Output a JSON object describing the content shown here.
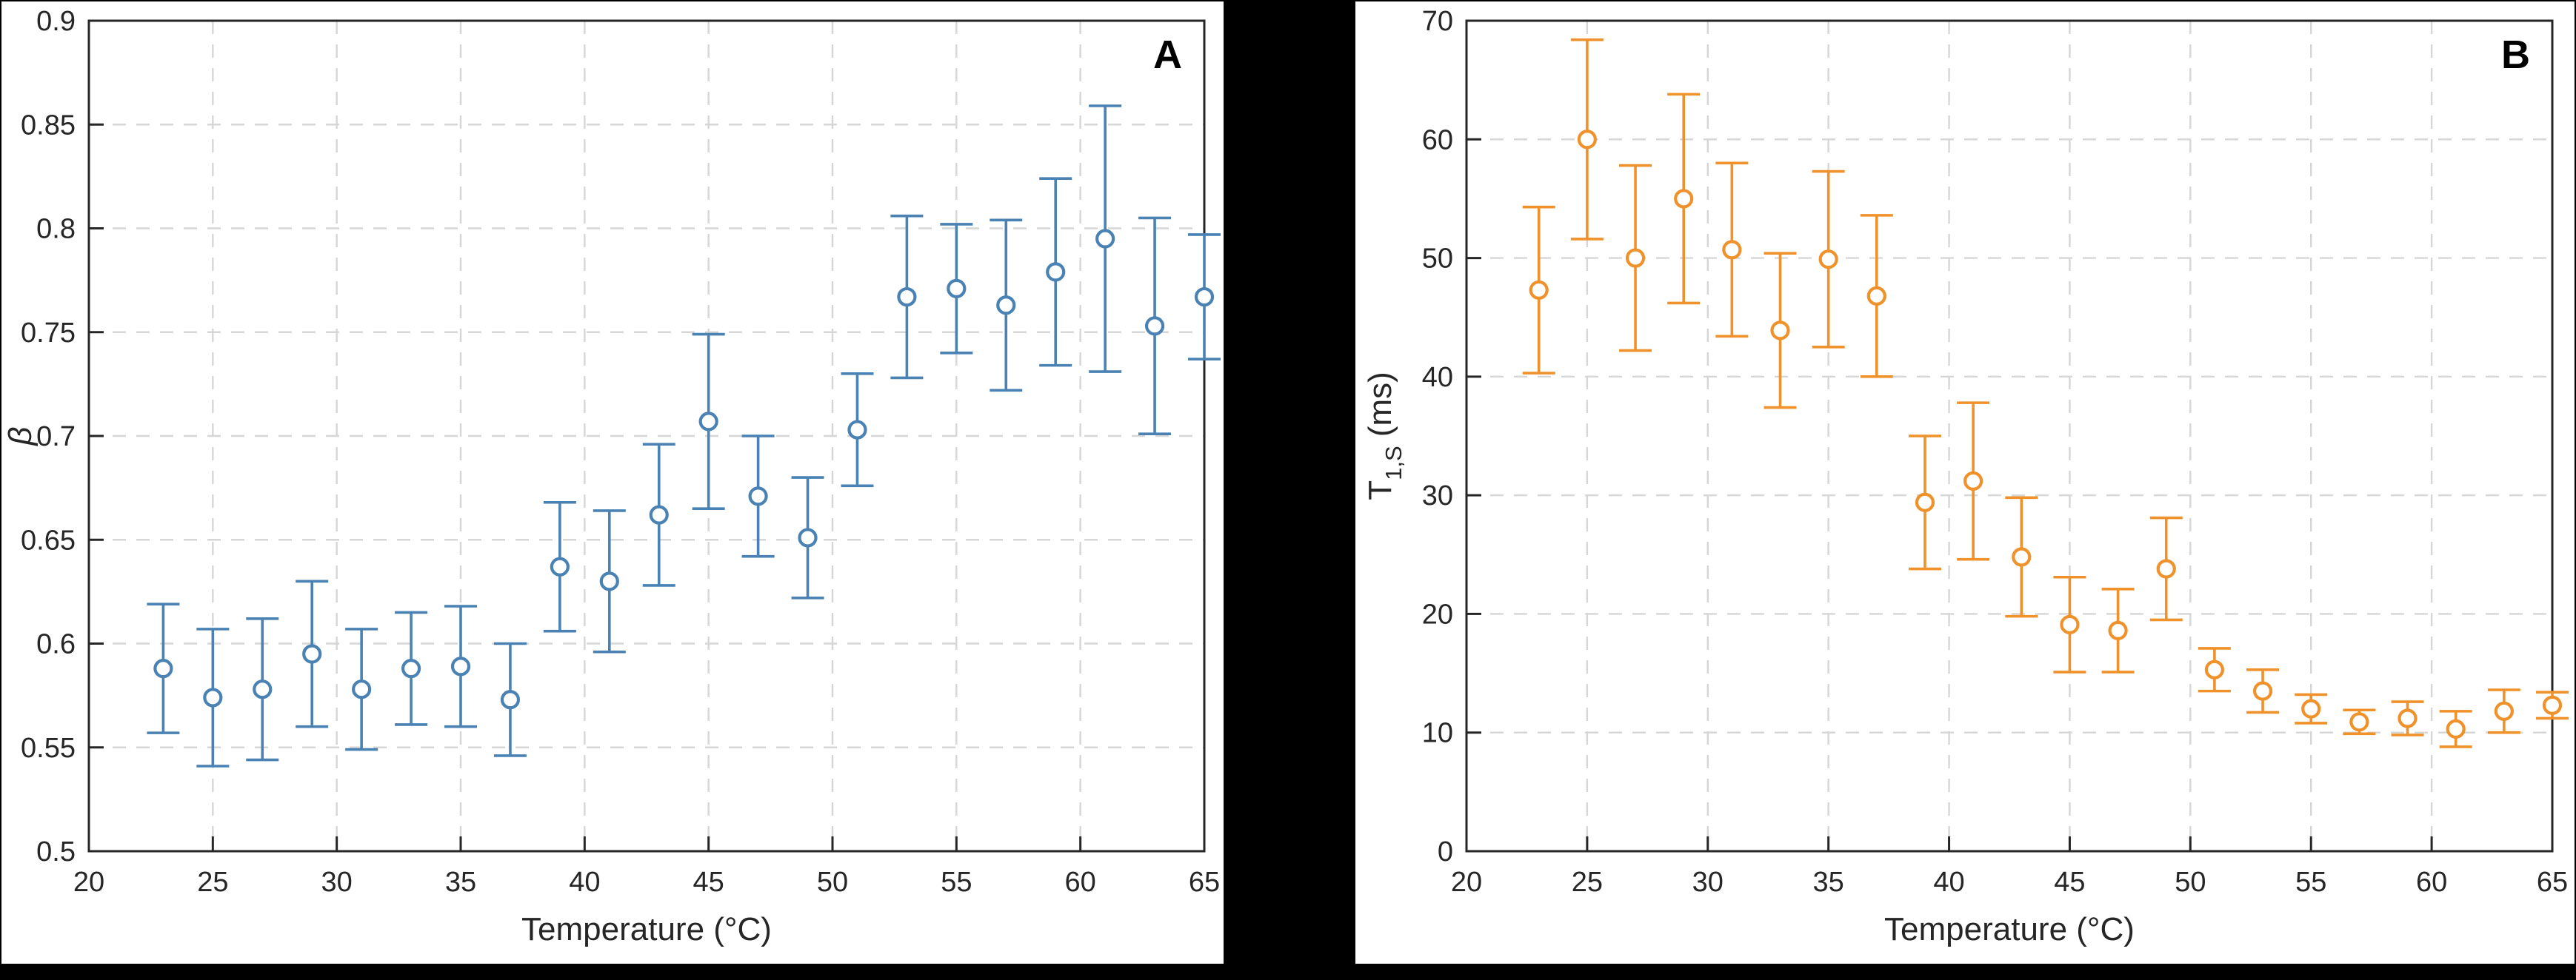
{
  "page": {
    "background_color": "#000000",
    "panel_background_color": "#ffffff"
  },
  "chart_data": [
    {
      "type": "scatter",
      "panel_label": "A",
      "color": "#4A82B4",
      "xlabel": "Temperature (°C)",
      "ylabel_parts": [
        {
          "text": "β",
          "italic": true
        }
      ],
      "xlim": [
        20,
        65
      ],
      "ylim": [
        0.5,
        0.9
      ],
      "xticks": [
        20,
        25,
        30,
        35,
        40,
        45,
        50,
        55,
        60,
        65
      ],
      "xtick_labels": [
        "20",
        "25",
        "30",
        "35",
        "40",
        "45",
        "50",
        "55",
        "60",
        "65"
      ],
      "yticks": [
        0.5,
        0.55,
        0.6,
        0.65,
        0.7,
        0.75,
        0.8,
        0.85,
        0.9
      ],
      "ytick_labels": [
        "0.5",
        "0.55",
        "0.6",
        "0.65",
        "0.7",
        "0.75",
        "0.8",
        "0.85",
        "0.9"
      ],
      "grid": true,
      "legend": "none",
      "x": [
        23,
        25,
        27,
        29,
        31,
        33,
        35,
        37,
        39,
        41,
        43,
        45,
        47,
        49,
        51,
        53,
        55,
        57,
        59,
        61,
        63,
        65
      ],
      "y": [
        0.588,
        0.574,
        0.578,
        0.595,
        0.578,
        0.588,
        0.589,
        0.573,
        0.637,
        0.63,
        0.662,
        0.707,
        0.671,
        0.651,
        0.703,
        0.767,
        0.771,
        0.763,
        0.779,
        0.795,
        0.753,
        0.767
      ],
      "yerr": [
        0.031,
        0.033,
        0.034,
        0.035,
        0.029,
        0.027,
        0.029,
        0.027,
        0.031,
        0.034,
        0.034,
        0.042,
        0.029,
        0.029,
        0.027,
        0.039,
        0.031,
        0.041,
        0.045,
        0.064,
        0.052,
        0.03
      ]
    },
    {
      "type": "scatter",
      "panel_label": "B",
      "color": "#F0922B",
      "xlabel": "Temperature (°C)",
      "ylabel_parts": [
        {
          "text": "T"
        },
        {
          "text": "1,S",
          "sub": true
        },
        {
          "text": " (ms)"
        }
      ],
      "xlim": [
        20,
        65
      ],
      "ylim": [
        0,
        70
      ],
      "xticks": [
        20,
        25,
        30,
        35,
        40,
        45,
        50,
        55,
        60,
        65
      ],
      "xtick_labels": [
        "20",
        "25",
        "30",
        "35",
        "40",
        "45",
        "50",
        "55",
        "60",
        "65"
      ],
      "yticks": [
        0,
        10,
        20,
        30,
        40,
        50,
        60,
        70
      ],
      "ytick_labels": [
        "0",
        "10",
        "20",
        "30",
        "40",
        "50",
        "60",
        "70"
      ],
      "grid": true,
      "legend": "none",
      "x": [
        23,
        25,
        27,
        29,
        31,
        33,
        35,
        37,
        39,
        41,
        43,
        45,
        47,
        49,
        51,
        53,
        55,
        57,
        59,
        61,
        63,
        65
      ],
      "y": [
        47.3,
        60.0,
        50.0,
        55.0,
        50.7,
        43.9,
        49.9,
        46.8,
        29.4,
        31.2,
        24.8,
        19.1,
        18.6,
        23.8,
        15.3,
        13.5,
        12.0,
        10.9,
        11.2,
        10.3,
        11.8,
        12.3
      ],
      "yerr": [
        7.0,
        8.4,
        7.8,
        8.8,
        7.3,
        6.5,
        7.4,
        6.8,
        5.6,
        6.6,
        5.0,
        4.0,
        3.5,
        4.3,
        1.8,
        1.8,
        1.2,
        1.0,
        1.4,
        1.5,
        1.8,
        1.1
      ]
    }
  ]
}
